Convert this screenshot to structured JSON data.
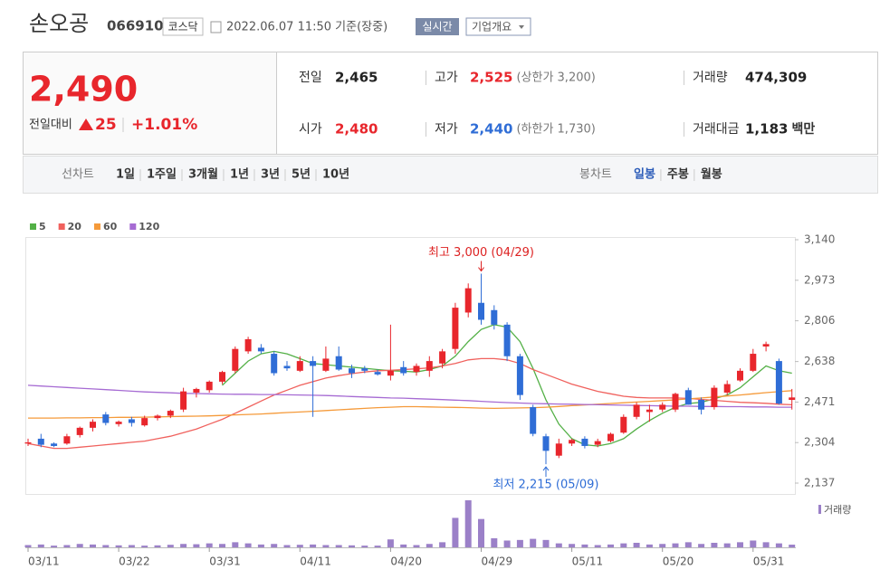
{
  "header": {
    "name": "손오공",
    "code": "066910",
    "market": "코스닥",
    "timestamp": "2022.06.07 11:50 기준(장중)",
    "realtime_button": "실시간",
    "company_button": "기업개요"
  },
  "summary": {
    "price": "2,490",
    "change_label": "전일대비",
    "change": "25",
    "change_rate": "+1.01%",
    "stats": [
      {
        "label": "전일",
        "value": "2,465"
      },
      {
        "label": "고가",
        "value": "2,525",
        "note": "(상한가 3,200)"
      },
      {
        "label": "거래량",
        "value": "474,309"
      },
      {
        "label": "시가",
        "value": "2,480"
      },
      {
        "label": "저가",
        "value": "2,440",
        "note": "(하한가 1,730)"
      },
      {
        "label": "거래대금",
        "value": "1,183",
        "unit": "백만"
      }
    ]
  },
  "tabs": {
    "line_chart": {
      "label": "선차트",
      "options": [
        "1일",
        "1주일",
        "3개월",
        "1년",
        "3년",
        "5년",
        "10년"
      ]
    },
    "candle_chart": {
      "label": "봉차트",
      "options": [
        "일봉",
        "주봉",
        "월봉"
      ],
      "selected": "일봉"
    }
  },
  "chart_data": {
    "type": "candlestick",
    "up_color": "#e8262c",
    "down_color": "#2f6dd6",
    "volume_color": "#9b80c8",
    "volume_label": "거래량",
    "x": [
      "03/11",
      "03/14",
      "03/15",
      "03/16",
      "03/17",
      "03/18",
      "03/21",
      "03/22",
      "03/23",
      "03/24",
      "03/25",
      "03/28",
      "03/29",
      "03/30",
      "03/31",
      "04/01",
      "04/04",
      "04/05",
      "04/06",
      "04/07",
      "04/08",
      "04/11",
      "04/12",
      "04/13",
      "04/14",
      "04/15",
      "04/18",
      "04/19",
      "04/20",
      "04/21",
      "04/22",
      "04/25",
      "04/26",
      "04/27",
      "04/28",
      "04/29",
      "05/02",
      "05/03",
      "05/04",
      "05/06",
      "05/09",
      "05/10",
      "05/11",
      "05/12",
      "05/13",
      "05/16",
      "05/17",
      "05/18",
      "05/19",
      "05/20",
      "05/23",
      "05/24",
      "05/25",
      "05/26",
      "05/27",
      "05/30",
      "05/31",
      "06/02",
      "06/03",
      "06/07"
    ],
    "xticks": [
      "03/11",
      "03/22",
      "03/31",
      "04/11",
      "04/20",
      "04/29",
      "05/11",
      "05/20",
      "05/31"
    ],
    "ylim": [
      2137,
      3140
    ],
    "yticks": [
      {
        "value": 2137,
        "label": "2,137"
      },
      {
        "value": 2304,
        "label": "2,304"
      },
      {
        "value": 2471,
        "label": "2,471"
      },
      {
        "value": 2638,
        "label": "2,638"
      },
      {
        "value": 2806,
        "label": "2,806"
      },
      {
        "value": 2973,
        "label": "2,973"
      },
      {
        "value": 3140,
        "label": "3,140"
      }
    ],
    "open": [
      2300,
      2320,
      2300,
      2300,
      2335,
      2365,
      2420,
      2380,
      2400,
      2375,
      2405,
      2415,
      2440,
      2510,
      2520,
      2555,
      2600,
      2680,
      2695,
      2670,
      2620,
      2600,
      2640,
      2600,
      2660,
      2610,
      2610,
      2595,
      2580,
      2615,
      2595,
      2600,
      2630,
      2690,
      2840,
      2880,
      2850,
      2790,
      2660,
      2450,
      2330,
      2250,
      2300,
      2320,
      2295,
      2310,
      2345,
      2410,
      2430,
      2440,
      2440,
      2520,
      2480,
      2450,
      2510,
      2560,
      2600,
      2700,
      2640,
      2480
    ],
    "high": [
      2320,
      2340,
      2305,
      2340,
      2370,
      2400,
      2430,
      2395,
      2410,
      2415,
      2420,
      2440,
      2530,
      2530,
      2560,
      2600,
      2700,
      2740,
      2710,
      2680,
      2640,
      2660,
      2660,
      2700,
      2700,
      2625,
      2620,
      2605,
      2790,
      2640,
      2630,
      2660,
      2690,
      2880,
      2960,
      3000,
      2870,
      2800,
      2670,
      2460,
      2340,
      2320,
      2320,
      2330,
      2320,
      2345,
      2420,
      2470,
      2460,
      2470,
      2510,
      2530,
      2490,
      2540,
      2560,
      2610,
      2690,
      2720,
      2650,
      2525
    ],
    "low": [
      2290,
      2285,
      2285,
      2295,
      2325,
      2350,
      2375,
      2370,
      2370,
      2370,
      2395,
      2405,
      2430,
      2490,
      2510,
      2545,
      2590,
      2670,
      2670,
      2580,
      2600,
      2595,
      2410,
      2595,
      2600,
      2570,
      2590,
      2580,
      2560,
      2580,
      2580,
      2575,
      2610,
      2670,
      2820,
      2790,
      2770,
      2640,
      2480,
      2330,
      2215,
      2240,
      2290,
      2280,
      2285,
      2305,
      2340,
      2400,
      2390,
      2430,
      2430,
      2460,
      2420,
      2440,
      2500,
      2555,
      2595,
      2680,
      2460,
      2440
    ],
    "close": [
      2305,
      2295,
      2290,
      2330,
      2365,
      2390,
      2385,
      2390,
      2385,
      2405,
      2415,
      2435,
      2515,
      2525,
      2555,
      2595,
      2690,
      2730,
      2680,
      2590,
      2610,
      2640,
      2620,
      2650,
      2605,
      2590,
      2600,
      2585,
      2600,
      2590,
      2620,
      2640,
      2680,
      2860,
      2940,
      2810,
      2790,
      2660,
      2500,
      2340,
      2270,
      2300,
      2315,
      2290,
      2310,
      2340,
      2410,
      2460,
      2440,
      2460,
      2505,
      2460,
      2440,
      2530,
      2545,
      2600,
      2670,
      2710,
      2465,
      2490
    ],
    "volume": [
      400000,
      500000,
      300000,
      400000,
      600000,
      500000,
      400000,
      350000,
      400000,
      300000,
      350000,
      450000,
      600000,
      550000,
      700000,
      600000,
      900000,
      700000,
      500000,
      600000,
      400000,
      450000,
      500000,
      400000,
      400000,
      350000,
      300000,
      300000,
      1400000,
      500000,
      400000,
      600000,
      900000,
      5200000,
      8300000,
      5000000,
      1600000,
      1200000,
      1300000,
      1500000,
      1300000,
      700000,
      600000,
      500000,
      400000,
      500000,
      700000,
      800000,
      500000,
      600000,
      700000,
      900000,
      600000,
      800000,
      700000,
      900000,
      1200000,
      900000,
      700000,
      474309
    ],
    "series": [
      {
        "name": "5",
        "color": "#53b046",
        "values": [
          null,
          null,
          null,
          null,
          null,
          null,
          null,
          null,
          null,
          null,
          null,
          null,
          null,
          null,
          null,
          2540,
          2590,
          2640,
          2670,
          2680,
          2670,
          2650,
          2630,
          2625,
          2620,
          2615,
          2610,
          2605,
          2600,
          2598,
          2595,
          2605,
          2620,
          2660,
          2720,
          2770,
          2790,
          2780,
          2720,
          2610,
          2480,
          2380,
          2320,
          2295,
          2290,
          2300,
          2320,
          2360,
          2395,
          2425,
          2450,
          2465,
          2470,
          2485,
          2500,
          2530,
          2575,
          2620,
          2600,
          2590
        ]
      },
      {
        "name": "20",
        "color": "#f0615d",
        "values": [
          2300,
          2290,
          2280,
          2280,
          2285,
          2290,
          2295,
          2300,
          2305,
          2310,
          2320,
          2330,
          2345,
          2360,
          2380,
          2400,
          2425,
          2450,
          2475,
          2500,
          2520,
          2540,
          2555,
          2570,
          2580,
          2588,
          2595,
          2600,
          2602,
          2605,
          2608,
          2612,
          2620,
          2630,
          2645,
          2650,
          2650,
          2645,
          2630,
          2605,
          2585,
          2565,
          2545,
          2530,
          2515,
          2505,
          2495,
          2490,
          2488,
          2488,
          2488,
          2486,
          2482,
          2478,
          2474,
          2470,
          2468,
          2466,
          2462,
          2460
        ]
      },
      {
        "name": "60",
        "color": "#f59a3a",
        "values": [
          2405,
          2405,
          2405,
          2406,
          2406,
          2407,
          2407,
          2408,
          2408,
          2409,
          2410,
          2411,
          2412,
          2413,
          2414,
          2416,
          2418,
          2420,
          2422,
          2425,
          2428,
          2430,
          2433,
          2436,
          2439,
          2442,
          2445,
          2448,
          2450,
          2452,
          2452,
          2451,
          2450,
          2449,
          2448,
          2446,
          2445,
          2446,
          2447,
          2448,
          2450,
          2453,
          2456,
          2459,
          2462,
          2465,
          2468,
          2471,
          2474,
          2477,
          2480,
          2484,
          2488,
          2492,
          2496,
          2500,
          2505,
          2510,
          2514,
          2518
        ]
      },
      {
        "name": "120",
        "color": "#a66bd3",
        "values": [
          2540,
          2537,
          2534,
          2531,
          2528,
          2525,
          2522,
          2519,
          2516,
          2513,
          2511,
          2509,
          2507,
          2506,
          2505,
          2504,
          2503,
          2503,
          2502,
          2502,
          2501,
          2500,
          2499,
          2498,
          2496,
          2494,
          2492,
          2490,
          2488,
          2487,
          2485,
          2483,
          2481,
          2479,
          2477,
          2474,
          2471,
          2469,
          2467,
          2465,
          2464,
          2463,
          2462,
          2461,
          2460,
          2459,
          2458,
          2457,
          2456,
          2455,
          2454,
          2454,
          2453,
          2453,
          2452,
          2452,
          2451,
          2451,
          2450,
          2450
        ]
      }
    ],
    "annotations": [
      {
        "text": "최고 3,000 (04/29)",
        "color": "#d22",
        "index": 35,
        "value": 3000,
        "side": "top"
      },
      {
        "text": "최저 2,215 (05/09)",
        "color": "#2f6dd6",
        "index": 40,
        "value": 2215,
        "side": "bottom"
      }
    ]
  }
}
